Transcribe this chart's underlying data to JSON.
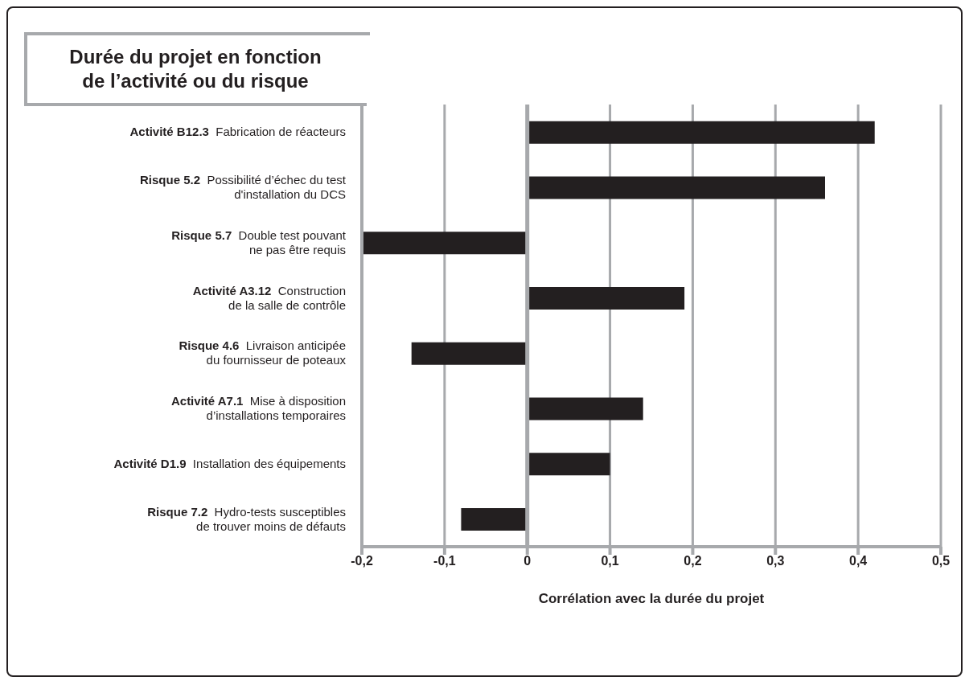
{
  "chart_data": {
    "type": "bar",
    "orientation": "horizontal",
    "title": "Durée du projet en fonction de l’activité ou du risque",
    "xlabel": "Corrélation avec la durée du projet",
    "categories": [
      "Activité B12.3  Fabrication de réacteurs",
      "Risque 5.2  Possibilité d’échec du test\nd'installation du DCS",
      "Risque 5.7  Double test pouvant\nne pas être requis",
      "Activité A3.12  Construction\nde la salle de contrôle",
      "Risque 4.6  Livraison anticipée\ndu fournisseur de poteaux",
      "Activité A7.1  Mise à disposition\nd’installations temporaires",
      "Activité D1.9  Installation des équipements",
      "Risque 7.2  Hydro-tests susceptibles\nde trouver moins de défauts"
    ],
    "values": [
      0.42,
      0.36,
      -0.2,
      0.19,
      -0.14,
      0.14,
      0.1,
      -0.08
    ],
    "color": "#231f20",
    "xlim": [
      -0.2,
      0.5
    ],
    "xticks": [
      {
        "value": -0.2,
        "label": "-0,2"
      },
      {
        "value": -0.1,
        "label": "-0,1"
      },
      0,
      {
        "value": 0.1,
        "label": "0,1"
      },
      {
        "value": 0.2,
        "label": "0,2"
      },
      {
        "value": 0.3,
        "label": "0,3"
      },
      {
        "value": 0.4,
        "label": "0,4"
      },
      {
        "value": 0.5,
        "label": "0,5"
      }
    ],
    "grid": "x"
  }
}
